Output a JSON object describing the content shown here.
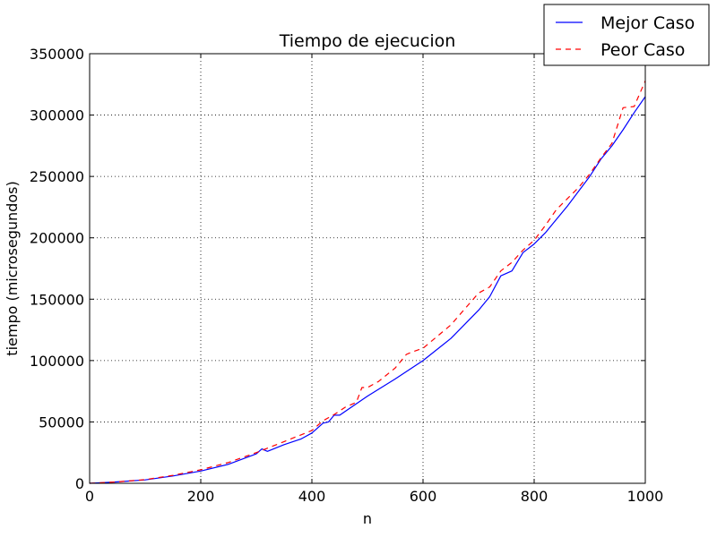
{
  "chart_data": {
    "type": "line",
    "title": "Tiempo de ejecucion",
    "xlabel": "n",
    "ylabel": "tiempo (microsegundos)",
    "xlim": [
      0,
      1000
    ],
    "ylim": [
      0,
      350000
    ],
    "xticks": [
      0,
      200,
      400,
      600,
      800,
      1000
    ],
    "yticks": [
      0,
      50000,
      100000,
      150000,
      200000,
      250000,
      300000,
      350000
    ],
    "grid": true,
    "legend_position": "top-right",
    "series": [
      {
        "name": "Mejor Caso",
        "color": "#0000ff",
        "style": "solid",
        "x": [
          0,
          50,
          100,
          150,
          200,
          250,
          300,
          310,
          320,
          350,
          380,
          400,
          410,
          420,
          430,
          440,
          450,
          500,
          550,
          600,
          650,
          700,
          720,
          740,
          760,
          780,
          800,
          820,
          840,
          860,
          880,
          900,
          920,
          940,
          960,
          980,
          1000
        ],
        "y": [
          0,
          1200,
          2800,
          6000,
          10000,
          15500,
          24000,
          28000,
          26000,
          31500,
          36000,
          41000,
          45000,
          49000,
          50000,
          55500,
          55500,
          71000,
          85000,
          100000,
          118000,
          141000,
          152000,
          169000,
          173000,
          188000,
          195000,
          204000,
          215000,
          226000,
          238000,
          250000,
          264000,
          275000,
          288000,
          302000,
          315000
        ]
      },
      {
        "name": "Peor Caso",
        "color": "#ff0000",
        "style": "dashed",
        "x": [
          0,
          50,
          100,
          150,
          200,
          250,
          300,
          350,
          400,
          420,
          440,
          460,
          480,
          490,
          500,
          520,
          550,
          570,
          580,
          600,
          650,
          700,
          720,
          740,
          760,
          780,
          800,
          820,
          840,
          860,
          880,
          900,
          920,
          940,
          960,
          980,
          1000
        ],
        "y": [
          0,
          1200,
          3000,
          6500,
          11000,
          17000,
          25000,
          34000,
          43000,
          51000,
          56000,
          62000,
          66000,
          78000,
          78000,
          83000,
          94000,
          105000,
          107000,
          110000,
          129000,
          155000,
          160000,
          173000,
          180000,
          190000,
          198000,
          210000,
          223000,
          232000,
          241000,
          252000,
          265000,
          277000,
          306000,
          307000,
          328000
        ]
      }
    ]
  }
}
